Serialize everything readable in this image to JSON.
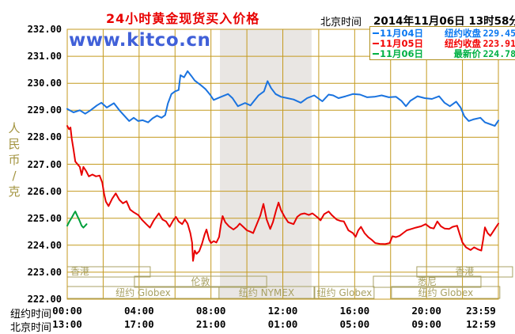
{
  "header": {
    "title": "24小时黄金现货买入价格",
    "timezone_label": "北京时间",
    "datetime": "2014年11月06日 13时58分"
  },
  "watermark": "www.kitco.cn",
  "legend": {
    "items": [
      {
        "date": "11月04日",
        "label": "纽约收盘",
        "value": "229.45",
        "color": "#0a78f0"
      },
      {
        "date": "11月05日",
        "label": "纽约收盘",
        "value": "223.91",
        "color": "#f20000"
      },
      {
        "date": "11月06日",
        "label": "最新价",
        "value": "224.78",
        "color": "#00b044"
      }
    ]
  },
  "y_axis": {
    "unit_label": "人民币/克",
    "ticks": [
      "232.00",
      "231.00",
      "230.00",
      "229.00",
      "228.00",
      "227.00",
      "226.00",
      "225.00",
      "224.00",
      "223.00",
      "222.00"
    ]
  },
  "x_axis": {
    "row1_label": "纽约时间",
    "row2_label": "北京时间",
    "ticks": [
      {
        "hour": 0,
        "ny": "00:00",
        "bj": "13:00"
      },
      {
        "hour": 4,
        "ny": "04:00",
        "bj": "17:00"
      },
      {
        "hour": 8,
        "ny": "08:00",
        "bj": "21:00"
      },
      {
        "hour": 12,
        "ny": "12:00",
        "bj": "01:00"
      },
      {
        "hour": 16,
        "ny": "16:00",
        "bj": "05:00"
      },
      {
        "hour": 20,
        "ny": "20:00",
        "bj": "09:00"
      },
      {
        "hour": 23.983,
        "ny": "23:59",
        "bj": "12:59"
      }
    ]
  },
  "chart_data": {
    "type": "line",
    "title": "24小时黄金现货买入价格",
    "ylabel": "人民币/克",
    "ylim": [
      222,
      232
    ],
    "y_tick_step": 1,
    "x_hours": 24,
    "x_grid_step_hours": 2,
    "grid": true,
    "colors": {
      "grid": "#c49a1f",
      "band": "#e9e6e3",
      "session": "#a8a164",
      "title": "#e80000",
      "watermark": "#4060d8",
      "y_unit": "#a39440"
    },
    "highlight_band_hours": [
      8.5,
      13.6
    ],
    "sessions": [
      {
        "label": "香港",
        "row": 0,
        "start_hour": 0,
        "end_hour": 4.62,
        "align": "left"
      },
      {
        "label": "香港",
        "row": 0,
        "start_hour": 19.46,
        "end_hour": 24.79,
        "align": "center"
      },
      {
        "label": "伦敦",
        "row": 1,
        "start_hour": 3.74,
        "end_hour": 11.1,
        "align": "center"
      },
      {
        "label": "悉尼",
        "row": 1,
        "start_hour": 17.04,
        "end_hour": 23.03,
        "align": "center"
      },
      {
        "label": "纽约 Globex",
        "row": 2,
        "start_hour": 0,
        "end_hour": 8.45,
        "align": "center"
      },
      {
        "label": "纽约 NYMEX",
        "row": 2,
        "start_hour": 8.45,
        "end_hour": 13.74,
        "align": "center"
      },
      {
        "label": "纽约 Globex",
        "row": 2,
        "start_hour": 13.78,
        "end_hour": 17.08,
        "align": "center"
      },
      {
        "label": "纽约 Globex",
        "row": 2,
        "start_hour": 18.05,
        "end_hour": 24.08,
        "align": "center"
      }
    ],
    "series": [
      {
        "id": "nov04",
        "name": "11月04日",
        "color": "#1a73df",
        "legend_value": 229.45,
        "points": [
          [
            0.0,
            229.05
          ],
          [
            0.35,
            228.92
          ],
          [
            0.7,
            229.0
          ],
          [
            1.0,
            228.87
          ],
          [
            1.3,
            229.0
          ],
          [
            1.65,
            229.18
          ],
          [
            1.9,
            229.28
          ],
          [
            2.2,
            229.1
          ],
          [
            2.6,
            229.26
          ],
          [
            2.9,
            229.0
          ],
          [
            3.2,
            228.78
          ],
          [
            3.45,
            228.6
          ],
          [
            3.7,
            228.72
          ],
          [
            3.95,
            228.6
          ],
          [
            4.2,
            228.63
          ],
          [
            4.5,
            228.55
          ],
          [
            4.75,
            228.7
          ],
          [
            5.0,
            228.8
          ],
          [
            5.25,
            228.72
          ],
          [
            5.45,
            228.82
          ],
          [
            5.6,
            229.25
          ],
          [
            5.8,
            229.6
          ],
          [
            6.0,
            229.7
          ],
          [
            6.2,
            229.75
          ],
          [
            6.3,
            230.3
          ],
          [
            6.5,
            230.22
          ],
          [
            6.7,
            230.45
          ],
          [
            6.9,
            230.28
          ],
          [
            7.1,
            230.1
          ],
          [
            7.4,
            229.95
          ],
          [
            7.7,
            229.78
          ],
          [
            7.95,
            229.58
          ],
          [
            8.15,
            229.38
          ],
          [
            8.5,
            229.48
          ],
          [
            8.95,
            229.6
          ],
          [
            9.2,
            229.45
          ],
          [
            9.5,
            229.15
          ],
          [
            9.9,
            229.27
          ],
          [
            10.2,
            229.18
          ],
          [
            10.65,
            229.55
          ],
          [
            10.95,
            229.7
          ],
          [
            11.15,
            230.08
          ],
          [
            11.35,
            229.82
          ],
          [
            11.6,
            229.6
          ],
          [
            11.9,
            229.5
          ],
          [
            12.25,
            229.45
          ],
          [
            12.6,
            229.4
          ],
          [
            13.0,
            229.28
          ],
          [
            13.35,
            229.45
          ],
          [
            13.75,
            229.55
          ],
          [
            14.2,
            229.33
          ],
          [
            14.55,
            229.58
          ],
          [
            14.8,
            229.55
          ],
          [
            15.1,
            229.45
          ],
          [
            15.5,
            229.52
          ],
          [
            15.9,
            229.6
          ],
          [
            16.3,
            229.58
          ],
          [
            16.7,
            229.48
          ],
          [
            17.1,
            229.5
          ],
          [
            17.5,
            229.55
          ],
          [
            17.9,
            229.48
          ],
          [
            18.3,
            229.5
          ],
          [
            18.6,
            229.35
          ],
          [
            18.85,
            229.15
          ],
          [
            19.1,
            229.35
          ],
          [
            19.5,
            229.52
          ],
          [
            19.9,
            229.45
          ],
          [
            20.3,
            229.42
          ],
          [
            20.7,
            229.52
          ],
          [
            21.0,
            229.28
          ],
          [
            21.3,
            229.15
          ],
          [
            21.65,
            229.32
          ],
          [
            21.9,
            229.1
          ],
          [
            22.1,
            228.78
          ],
          [
            22.35,
            228.6
          ],
          [
            22.6,
            228.66
          ],
          [
            23.0,
            228.72
          ],
          [
            23.25,
            228.55
          ],
          [
            23.55,
            228.48
          ],
          [
            23.8,
            228.42
          ],
          [
            24.0,
            228.62
          ]
        ]
      },
      {
        "id": "nov05",
        "name": "11月05日",
        "color": "#e80202",
        "legend_value": 223.91,
        "points": [
          [
            0.0,
            228.42
          ],
          [
            0.1,
            228.3
          ],
          [
            0.18,
            228.36
          ],
          [
            0.25,
            227.95
          ],
          [
            0.35,
            227.55
          ],
          [
            0.45,
            227.1
          ],
          [
            0.6,
            226.98
          ],
          [
            0.7,
            226.9
          ],
          [
            0.8,
            226.6
          ],
          [
            0.9,
            226.9
          ],
          [
            1.05,
            226.75
          ],
          [
            1.2,
            226.55
          ],
          [
            1.4,
            226.62
          ],
          [
            1.6,
            226.55
          ],
          [
            1.8,
            226.58
          ],
          [
            1.95,
            226.32
          ],
          [
            2.05,
            225.9
          ],
          [
            2.15,
            225.62
          ],
          [
            2.3,
            225.45
          ],
          [
            2.5,
            225.72
          ],
          [
            2.7,
            225.92
          ],
          [
            2.9,
            225.68
          ],
          [
            3.1,
            225.55
          ],
          [
            3.3,
            225.63
          ],
          [
            3.5,
            225.32
          ],
          [
            3.7,
            225.22
          ],
          [
            3.95,
            225.12
          ],
          [
            4.15,
            224.95
          ],
          [
            4.4,
            224.78
          ],
          [
            4.6,
            224.65
          ],
          [
            4.8,
            224.9
          ],
          [
            5.1,
            225.18
          ],
          [
            5.3,
            224.95
          ],
          [
            5.5,
            224.88
          ],
          [
            5.7,
            224.68
          ],
          [
            5.9,
            224.92
          ],
          [
            6.05,
            225.05
          ],
          [
            6.2,
            224.88
          ],
          [
            6.4,
            224.78
          ],
          [
            6.55,
            224.95
          ],
          [
            6.7,
            224.8
          ],
          [
            6.85,
            224.45
          ],
          [
            6.95,
            224.1
          ],
          [
            7.0,
            223.42
          ],
          [
            7.1,
            223.8
          ],
          [
            7.2,
            223.68
          ],
          [
            7.35,
            223.78
          ],
          [
            7.5,
            224.05
          ],
          [
            7.65,
            224.4
          ],
          [
            7.75,
            224.58
          ],
          [
            7.9,
            224.2
          ],
          [
            8.0,
            224.08
          ],
          [
            8.15,
            224.15
          ],
          [
            8.3,
            224.1
          ],
          [
            8.45,
            224.3
          ],
          [
            8.55,
            224.75
          ],
          [
            8.65,
            225.08
          ],
          [
            8.8,
            224.85
          ],
          [
            9.0,
            224.7
          ],
          [
            9.25,
            224.58
          ],
          [
            9.45,
            224.68
          ],
          [
            9.6,
            224.8
          ],
          [
            9.8,
            224.68
          ],
          [
            10.0,
            224.55
          ],
          [
            10.2,
            224.5
          ],
          [
            10.35,
            224.45
          ],
          [
            10.55,
            224.78
          ],
          [
            10.75,
            225.1
          ],
          [
            10.92,
            225.53
          ],
          [
            11.1,
            224.95
          ],
          [
            11.3,
            224.6
          ],
          [
            11.45,
            224.85
          ],
          [
            11.63,
            225.3
          ],
          [
            11.76,
            225.58
          ],
          [
            11.9,
            225.3
          ],
          [
            12.1,
            225.05
          ],
          [
            12.3,
            224.85
          ],
          [
            12.6,
            224.78
          ],
          [
            12.8,
            225.05
          ],
          [
            13.0,
            225.15
          ],
          [
            13.2,
            225.18
          ],
          [
            13.45,
            225.12
          ],
          [
            13.65,
            225.18
          ],
          [
            13.9,
            225.05
          ],
          [
            14.1,
            224.92
          ],
          [
            14.3,
            225.15
          ],
          [
            14.55,
            225.25
          ],
          [
            14.75,
            225.1
          ],
          [
            15.0,
            224.95
          ],
          [
            15.2,
            224.9
          ],
          [
            15.4,
            224.88
          ],
          [
            15.65,
            224.55
          ],
          [
            15.9,
            224.45
          ],
          [
            16.05,
            224.31
          ],
          [
            16.2,
            224.55
          ],
          [
            16.35,
            224.68
          ],
          [
            16.55,
            224.45
          ],
          [
            16.75,
            224.3
          ],
          [
            16.95,
            224.2
          ],
          [
            17.15,
            224.08
          ],
          [
            17.4,
            224.05
          ],
          [
            17.7,
            224.04
          ],
          [
            17.95,
            224.08
          ],
          [
            18.1,
            224.33
          ],
          [
            18.3,
            224.3
          ],
          [
            18.5,
            224.35
          ],
          [
            18.7,
            224.45
          ],
          [
            18.9,
            224.55
          ],
          [
            19.15,
            224.6
          ],
          [
            19.4,
            224.65
          ],
          [
            19.7,
            224.7
          ],
          [
            19.95,
            224.78
          ],
          [
            20.2,
            224.65
          ],
          [
            20.4,
            224.62
          ],
          [
            20.6,
            224.88
          ],
          [
            20.8,
            224.7
          ],
          [
            21.0,
            224.62
          ],
          [
            21.25,
            224.6
          ],
          [
            21.45,
            224.68
          ],
          [
            21.7,
            224.72
          ],
          [
            21.85,
            224.4
          ],
          [
            22.0,
            224.1
          ],
          [
            22.2,
            223.92
          ],
          [
            22.45,
            223.82
          ],
          [
            22.65,
            223.92
          ],
          [
            22.85,
            223.85
          ],
          [
            23.05,
            223.8
          ],
          [
            23.15,
            224.2
          ],
          [
            23.25,
            224.66
          ],
          [
            23.4,
            224.45
          ],
          [
            23.55,
            224.35
          ],
          [
            23.7,
            224.5
          ],
          [
            23.85,
            224.65
          ],
          [
            24.0,
            224.8
          ]
        ]
      },
      {
        "id": "nov06",
        "name": "11月06日",
        "color": "#00a03c",
        "legend_value": 224.78,
        "points": [
          [
            0.0,
            224.72
          ],
          [
            0.12,
            224.88
          ],
          [
            0.25,
            225.02
          ],
          [
            0.38,
            225.18
          ],
          [
            0.45,
            225.25
          ],
          [
            0.55,
            225.1
          ],
          [
            0.68,
            224.92
          ],
          [
            0.8,
            224.72
          ],
          [
            0.9,
            224.65
          ],
          [
            1.0,
            224.72
          ],
          [
            1.08,
            224.78
          ]
        ]
      }
    ]
  }
}
